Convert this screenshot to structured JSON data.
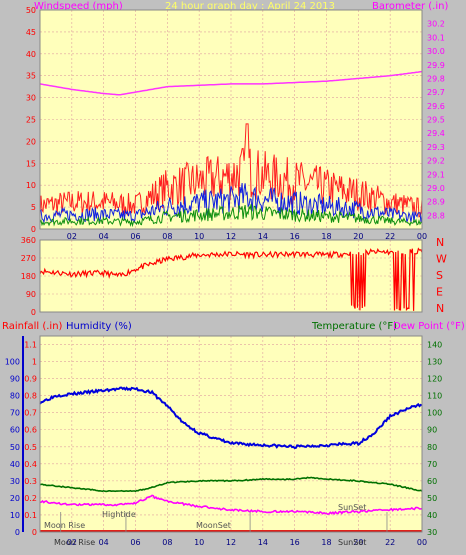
{
  "chart_data": [
    {
      "type": "line",
      "title": "24 hour graph day : April 24 2013",
      "ylabel_left": "Windspeed (mph)",
      "ylabel_right": "Barometer (.in)",
      "x_ticks": [
        "02",
        "04",
        "06",
        "08",
        "10",
        "12",
        "14",
        "16",
        "18",
        "20",
        "22",
        "00"
      ],
      "ylim_left": [
        0,
        50
      ],
      "y_ticks_left": [
        0,
        5,
        10,
        15,
        20,
        25,
        30,
        35,
        40,
        45,
        50
      ],
      "ylim_right": [
        28.7,
        30.3
      ],
      "y_ticks_right": [
        28.8,
        28.9,
        29.0,
        29.1,
        29.2,
        29.3,
        29.4,
        29.5,
        29.6,
        29.7,
        29.8,
        29.9,
        30.0,
        30.1,
        30.2
      ],
      "grid": true,
      "colors": {
        "gust": "#ff2020",
        "speed": "#1020e0",
        "min": "#109010",
        "barometer": "#ff33ff",
        "title": "#ffff66"
      },
      "barometer_points": [
        [
          0,
          29.76
        ],
        [
          2,
          29.72
        ],
        [
          4,
          29.69
        ],
        [
          5,
          29.68
        ],
        [
          6,
          29.7
        ],
        [
          7,
          29.72
        ],
        [
          8,
          29.74
        ],
        [
          10,
          29.75
        ],
        [
          12,
          29.76
        ],
        [
          14,
          29.76
        ],
        [
          16,
          29.77
        ],
        [
          18,
          29.78
        ],
        [
          20,
          29.8
        ],
        [
          22,
          29.82
        ],
        [
          24,
          29.85
        ]
      ],
      "gust_envelope": [
        [
          0,
          8
        ],
        [
          2,
          9
        ],
        [
          4,
          9
        ],
        [
          6,
          8
        ],
        [
          7,
          11
        ],
        [
          8,
          14
        ],
        [
          10,
          16
        ],
        [
          12,
          18
        ],
        [
          13,
          20
        ],
        [
          14,
          18
        ],
        [
          16,
          16
        ],
        [
          18,
          14
        ],
        [
          20,
          12
        ],
        [
          22,
          9
        ],
        [
          24,
          7
        ]
      ],
      "gust_peak": [
        13,
        24
      ]
    },
    {
      "type": "line",
      "ylabel_right_letters": [
        "N",
        "W",
        "S",
        "E",
        "N"
      ],
      "ylim": [
        0,
        360
      ],
      "y_ticks": [
        0,
        90,
        180,
        270,
        360
      ],
      "direction_points": [
        [
          0,
          205
        ],
        [
          2,
          190
        ],
        [
          4,
          195
        ],
        [
          5,
          180
        ],
        [
          6,
          215
        ],
        [
          7,
          240
        ],
        [
          8,
          265
        ],
        [
          10,
          285
        ],
        [
          12,
          290
        ],
        [
          14,
          285
        ],
        [
          16,
          290
        ],
        [
          18,
          285
        ],
        [
          20,
          295
        ],
        [
          21,
          300
        ],
        [
          22,
          300
        ],
        [
          24,
          305
        ]
      ],
      "color": "#ff0000"
    },
    {
      "type": "line",
      "labels": {
        "rainfall": "Rainfall (.in)",
        "humidity": "Humidity (%)",
        "temperature": "Temperature (°F)",
        "dewpoint": "Dew Point (°F)"
      },
      "y_ticks_rain": [
        0,
        0.1,
        0.2,
        0.3,
        0.4,
        0.5,
        0.6,
        0.7,
        0.8,
        0.9,
        1,
        1.1
      ],
      "ylim_rain": [
        0,
        1.15
      ],
      "y_ticks_hum": [
        0,
        10,
        20,
        30,
        40,
        50,
        60,
        70,
        80,
        90,
        100
      ],
      "y_ticks_temp": [
        30,
        40,
        50,
        60,
        70,
        80,
        90,
        100,
        110,
        120,
        130,
        140
      ],
      "ylim_temp": [
        30,
        145
      ],
      "humidity_points": [
        [
          0,
          76
        ],
        [
          1,
          80
        ],
        [
          4,
          83
        ],
        [
          5,
          84
        ],
        [
          6,
          84
        ],
        [
          7,
          82
        ],
        [
          8,
          74
        ],
        [
          9,
          64
        ],
        [
          10,
          58
        ],
        [
          11,
          55
        ],
        [
          12,
          52
        ],
        [
          14,
          51
        ],
        [
          16,
          50
        ],
        [
          18,
          51
        ],
        [
          20,
          52
        ],
        [
          21,
          58
        ],
        [
          22,
          68
        ],
        [
          23,
          72
        ],
        [
          24,
          75
        ]
      ],
      "temperature_points": [
        [
          0,
          58
        ],
        [
          2,
          56
        ],
        [
          4,
          54
        ],
        [
          5,
          54
        ],
        [
          6,
          54
        ],
        [
          7,
          56
        ],
        [
          8,
          59
        ],
        [
          10,
          60
        ],
        [
          12,
          60
        ],
        [
          14,
          61
        ],
        [
          16,
          61
        ],
        [
          17,
          62
        ],
        [
          18,
          61
        ],
        [
          20,
          60
        ],
        [
          22,
          58
        ],
        [
          24,
          54
        ]
      ],
      "dewpoint_points": [
        [
          0,
          48
        ],
        [
          2,
          46
        ],
        [
          4,
          46
        ],
        [
          5,
          46
        ],
        [
          6,
          47
        ],
        [
          7,
          51
        ],
        [
          8,
          48
        ],
        [
          10,
          45
        ],
        [
          12,
          43
        ],
        [
          14,
          42
        ],
        [
          16,
          42
        ],
        [
          18,
          41
        ],
        [
          20,
          42
        ],
        [
          22,
          43
        ],
        [
          24,
          44
        ]
      ],
      "annotations": {
        "moonrise_top": "Moon Rise",
        "hightide": "Hightide",
        "moonset": "MoonSet",
        "sunset": "SunSet",
        "moonrise_bottom": "Moon Rise",
        "sunset_bottom": "SunSet"
      },
      "colors": {
        "humidity": "#0000dd",
        "temperature": "#007000",
        "dewpoint": "#ff00ff",
        "rainfall": "#dd0000"
      }
    }
  ]
}
